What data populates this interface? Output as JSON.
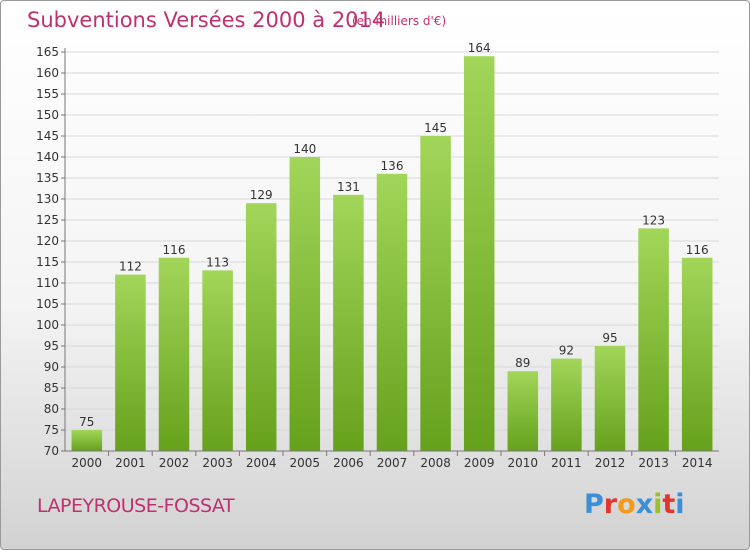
{
  "header": {
    "title": "Subventions Versées 2000 à 2014",
    "subtitle": "(en milliers d'€)"
  },
  "footer": {
    "commune": "LAPEYROUSE-FOSSAT",
    "brand": "Proxiti",
    "brand_colors": [
      "#3a8fd6",
      "#e2352c",
      "#f39a1a",
      "#3a8fd6",
      "#9bc12a",
      "#e2352c",
      "#3a8fd6"
    ]
  },
  "colors": {
    "bar_light": "#a2d65a",
    "bar_dark": "#66a11c",
    "grid": "#d8d8d8",
    "axis": "#777777",
    "text": "#333333",
    "title": "#c0306e"
  },
  "chart_data": {
    "type": "bar",
    "categories": [
      "2000",
      "2001",
      "2002",
      "2003",
      "2004",
      "2005",
      "2006",
      "2007",
      "2008",
      "2009",
      "2010",
      "2011",
      "2012",
      "2013",
      "2014"
    ],
    "values": [
      75,
      112,
      116,
      113,
      129,
      140,
      131,
      136,
      145,
      164,
      89,
      92,
      95,
      123,
      116
    ],
    "ylim": [
      70,
      165
    ],
    "ytick_step": 5,
    "grid": true,
    "data_labels": true
  }
}
